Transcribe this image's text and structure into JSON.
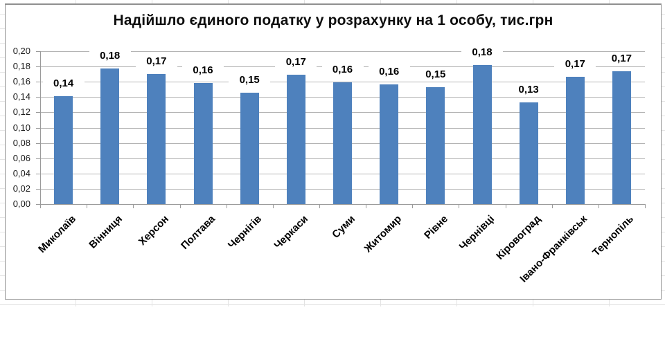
{
  "chart_data": {
    "type": "bar",
    "title": "Надійшло єдиного податку у розрахунку на 1 особу, тис.грн",
    "categories": [
      "Миколаїв",
      "Вінниця",
      "Херсон",
      "Полтава",
      "Чернігів",
      "Черкаси",
      "Суми",
      "Житомир",
      "Рівне",
      "Чернівці",
      "Кіровоград",
      "Івано-Франківськ",
      "Тернопіль"
    ],
    "values": [
      0.141,
      0.177,
      0.17,
      0.158,
      0.146,
      0.169,
      0.159,
      0.157,
      0.153,
      0.182,
      0.133,
      0.167,
      0.174
    ],
    "bar_labels": [
      "0,14",
      "0,18",
      "0,17",
      "0,16",
      "0,15",
      "0,17",
      "0,16",
      "0,16",
      "0,15",
      "0,18",
      "0,13",
      "0,17",
      "0,17"
    ],
    "xlabel": "",
    "ylabel": "",
    "ylim": [
      0,
      0.2
    ],
    "ytick_step": 0.02,
    "ytick_labels": [
      "0,00",
      "0,02",
      "0,04",
      "0,06",
      "0,08",
      "0,10",
      "0,12",
      "0,14",
      "0,16",
      "0,18",
      "0,20"
    ],
    "grid": true,
    "legend_position": "none",
    "bar_color": "#4E81BD"
  },
  "colors": {
    "bar": "#4E81BD",
    "gridline": "#B3B3B3",
    "axis": "#9A9A9A",
    "text": "#1A1A1A",
    "chart_border": "#8F8F8F",
    "sheet_gridline": "#E3E3E3"
  }
}
